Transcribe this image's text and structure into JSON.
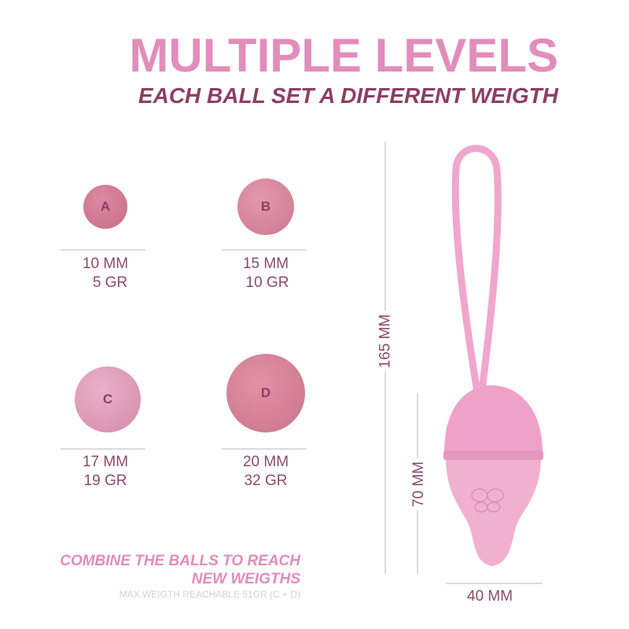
{
  "header": {
    "title": "MULTIPLE LEVELS",
    "subtitle": "EACH BALL SET A DIFFERENT WEIGTH"
  },
  "balls": [
    {
      "letter": "A",
      "size": "10 MM",
      "weight": "5 GR",
      "color": "#d2758f"
    },
    {
      "letter": "B",
      "size": "15 MM",
      "weight": "10 GR",
      "color": "#d9869c"
    },
    {
      "letter": "C",
      "size": "17 MM",
      "weight": "19 GR",
      "color": "#dc94b3"
    },
    {
      "letter": "D",
      "size": "20 MM",
      "weight": "32 GR",
      "color": "#d27b92"
    }
  ],
  "dimensions": {
    "length": "165 MM",
    "body_length": "70 MM",
    "width": "40 MM"
  },
  "footer": {
    "combine": "COMBINE THE BALLS TO REACH NEW WEIGTHS",
    "max": "MAX.WEIGTH REACHABLE 51GR (C + D)"
  },
  "colors": {
    "accent": "#e28dbb",
    "dark": "#8c3e64",
    "product": "#f0a9cd"
  }
}
